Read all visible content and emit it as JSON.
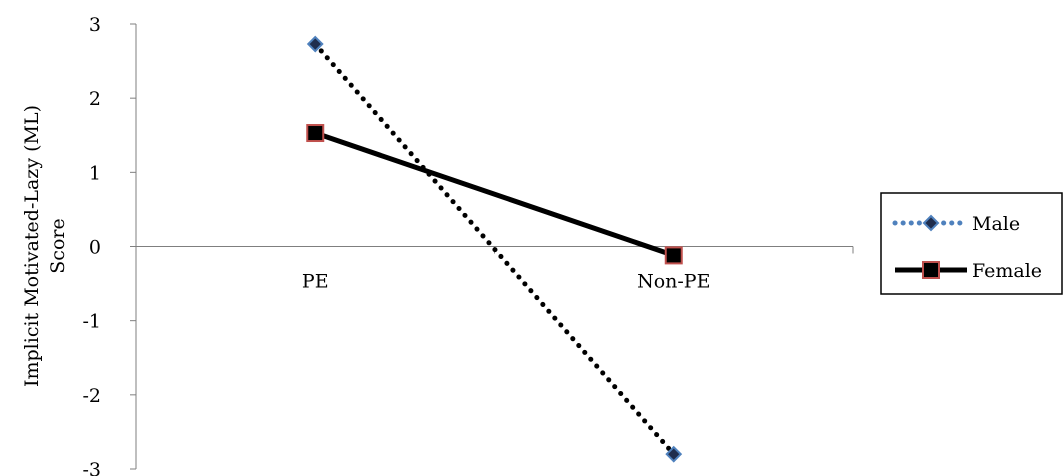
{
  "chart_data": {
    "type": "line",
    "categories": [
      "PE",
      "Non-PE"
    ],
    "series": [
      {
        "name": "Male",
        "values": [
          2.73,
          -2.8
        ],
        "color": "#000000",
        "marker_fill": "#1f2d4d",
        "marker_stroke": "#4f81bd",
        "marker": "diamond",
        "line_style": "dotted"
      },
      {
        "name": "Female",
        "values": [
          1.53,
          -0.12
        ],
        "color": "#000000",
        "marker_fill": "#000000",
        "marker_stroke": "#c0504d",
        "marker": "square",
        "line_style": "solid"
      }
    ],
    "ylabel": "Implicit Motivated-Lazy (ML) Score",
    "ylabel_lines": [
      "Implicit Motivated-Lazy (ML)",
      "Score"
    ],
    "yticks": [
      "3",
      "2",
      "1",
      "0",
      "-1",
      "-2",
      "-3"
    ],
    "ylim": [
      -3,
      3
    ],
    "grid": false,
    "legend_position": "right"
  }
}
